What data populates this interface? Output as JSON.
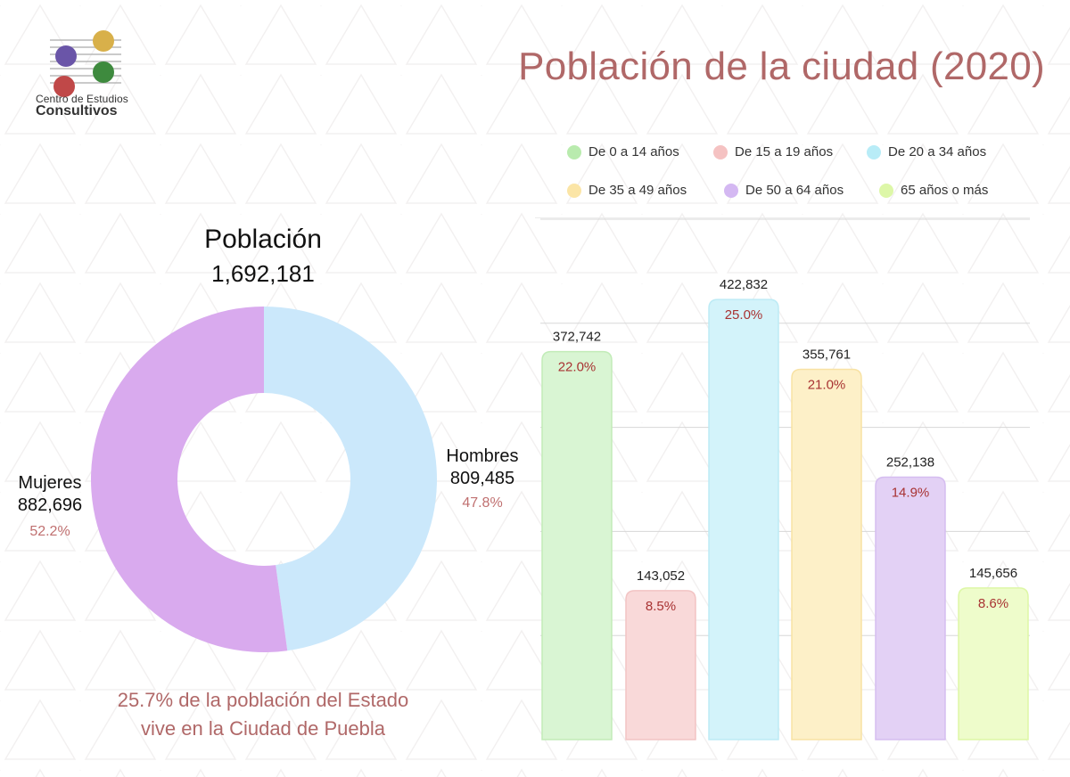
{
  "header": {
    "title": "Población de la ciudad (2020)"
  },
  "logo": {
    "line1": "Centro de Estudios",
    "line2": "Consultivos",
    "colors": [
      "#6a55a8",
      "#d8b04a",
      "#c04848",
      "#3e8a3e"
    ]
  },
  "donut": {
    "title": "Población",
    "total": "1,692,181",
    "colors": {
      "hombres": "#cbe8fb",
      "mujeres": "#d9aaee"
    }
  },
  "footnote": {
    "line1": "25.7% de la población del Estado",
    "line2": "vive en la Ciudad de Puebla"
  },
  "chart_data": [
    {
      "type": "pie",
      "title": "Población",
      "subtitle": "1,692,181",
      "labels": [
        "Hombres",
        "Mujeres"
      ],
      "values": [
        809485,
        882696
      ],
      "value_labels": [
        "809,485",
        "882,696"
      ],
      "percent_labels": [
        "47.8%",
        "52.2%"
      ],
      "colors": [
        "#cbe8fb",
        "#d9aaee"
      ]
    },
    {
      "type": "bar",
      "categories": [
        "De 0 a 14 años",
        "De 15 a 19 años",
        "De 20 a 34 años",
        "De 35 a 49 años",
        "De 50 a 64 años",
        "65 años o más"
      ],
      "values": [
        372742,
        143052,
        422832,
        355761,
        252138,
        145656
      ],
      "value_labels": [
        "372,742",
        "143,052",
        "422,832",
        "355,761",
        "252,138",
        "145,656"
      ],
      "percent_labels": [
        "22.0%",
        "8.5%",
        "25.0%",
        "21.0%",
        "14.9%",
        "8.6%"
      ],
      "colors": [
        "#d9f5d3",
        "#f9d9d9",
        "#d3f3fa",
        "#fdf0c8",
        "#e3d1f5",
        "#eefccb"
      ],
      "border_colors": [
        "#c2ecb8",
        "#f2c4c4",
        "#bdebf5",
        "#f8e2a4",
        "#d5bdf0",
        "#ddf7a6"
      ],
      "dot_colors": [
        "#b9ebae",
        "#f5c2c2",
        "#b8ecf7",
        "#fbe5a6",
        "#d4b8f2",
        "#ddf7a8"
      ],
      "pct_color": "#a83232",
      "ylim": [
        0,
        500000
      ],
      "grid": true,
      "legend": "top"
    }
  ]
}
